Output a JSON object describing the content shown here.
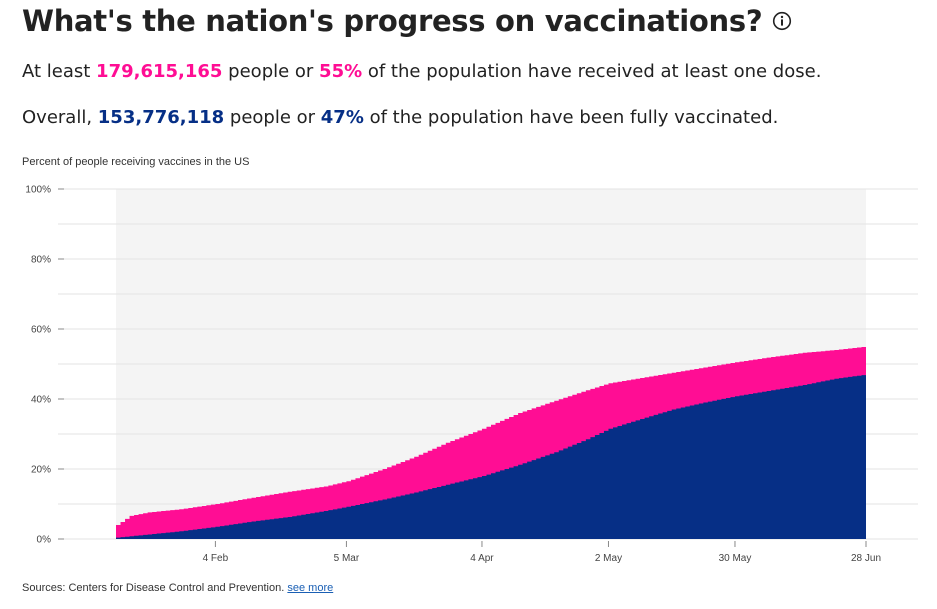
{
  "header": {
    "title": "What's the nation's progress on vaccinations?",
    "info_icon": "info-icon"
  },
  "stats": {
    "line1_prefix": "At least ",
    "line1_count": "179,615,165",
    "line1_mid": " people or ",
    "line1_pct": "55%",
    "line1_suffix": " of the population have received at least one dose.",
    "line2_prefix": "Overall, ",
    "line2_count": "153,776,118",
    "line2_mid": " people or ",
    "line2_pct": "47%",
    "line2_suffix": " of the population have been fully vaccinated."
  },
  "colors": {
    "one_dose": "#ff0d94",
    "fully": "#062f86",
    "plot_bg": "#f4f4f4",
    "grid": "#e3e3e3"
  },
  "chart_data": {
    "type": "area",
    "title": "Percent of people receiving vaccines in the US",
    "xlabel": "",
    "ylabel": "",
    "ylim": [
      0,
      100
    ],
    "y_ticks": [
      "0%",
      "20%",
      "40%",
      "60%",
      "80%",
      "100%"
    ],
    "y_tick_values": [
      0,
      20,
      40,
      60,
      80,
      100
    ],
    "x_ticks": [
      "4 Feb",
      "5 Mar",
      "4 Apr",
      "2 May",
      "30 May",
      "28 Jun"
    ],
    "x_tick_dates": [
      "2021-02-04",
      "2021-03-05",
      "2021-04-04",
      "2021-05-02",
      "2021-05-30",
      "2021-06-28"
    ],
    "x_start": "2021-01-13",
    "x_end": "2021-06-28",
    "grid": true,
    "series": [
      {
        "key": "one_dose",
        "points": [
          [
            "2021-01-13",
            4.0
          ],
          [
            "2021-01-16",
            6.6
          ],
          [
            "2021-01-20",
            7.6
          ],
          [
            "2021-01-27",
            8.5
          ],
          [
            "2021-02-04",
            10.0
          ],
          [
            "2021-02-12",
            11.8
          ],
          [
            "2021-02-20",
            13.5
          ],
          [
            "2021-02-28",
            15.0
          ],
          [
            "2021-03-05",
            16.5
          ],
          [
            "2021-03-13",
            20.0
          ],
          [
            "2021-03-20",
            23.5
          ],
          [
            "2021-03-27",
            27.5
          ],
          [
            "2021-04-04",
            31.5
          ],
          [
            "2021-04-12",
            36.0
          ],
          [
            "2021-04-20",
            39.5
          ],
          [
            "2021-04-27",
            42.5
          ],
          [
            "2021-05-02",
            44.5
          ],
          [
            "2021-05-09",
            46.0
          ],
          [
            "2021-05-16",
            47.5
          ],
          [
            "2021-05-23",
            49.0
          ],
          [
            "2021-05-30",
            50.5
          ],
          [
            "2021-06-07",
            52.0
          ],
          [
            "2021-06-14",
            53.2
          ],
          [
            "2021-06-21",
            54.0
          ],
          [
            "2021-06-28",
            55.0
          ]
        ]
      },
      {
        "key": "fully",
        "points": [
          [
            "2021-01-13",
            0.4
          ],
          [
            "2021-01-20",
            1.3
          ],
          [
            "2021-01-27",
            2.2
          ],
          [
            "2021-02-04",
            3.5
          ],
          [
            "2021-02-12",
            5.0
          ],
          [
            "2021-02-20",
            6.3
          ],
          [
            "2021-02-28",
            8.0
          ],
          [
            "2021-03-05",
            9.2
          ],
          [
            "2021-03-13",
            11.3
          ],
          [
            "2021-03-20",
            13.3
          ],
          [
            "2021-03-27",
            15.5
          ],
          [
            "2021-04-04",
            18.0
          ],
          [
            "2021-04-12",
            21.2
          ],
          [
            "2021-04-20",
            24.8
          ],
          [
            "2021-04-27",
            28.5
          ],
          [
            "2021-05-02",
            31.5
          ],
          [
            "2021-05-09",
            34.3
          ],
          [
            "2021-05-16",
            37.0
          ],
          [
            "2021-05-23",
            39.0
          ],
          [
            "2021-05-30",
            40.8
          ],
          [
            "2021-06-07",
            42.5
          ],
          [
            "2021-06-14",
            44.0
          ],
          [
            "2021-06-21",
            45.8
          ],
          [
            "2021-06-28",
            47.0
          ]
        ]
      }
    ]
  },
  "footer": {
    "source_text": "Sources: Centers for Disease Control and Prevention.",
    "see_more": "see more"
  }
}
